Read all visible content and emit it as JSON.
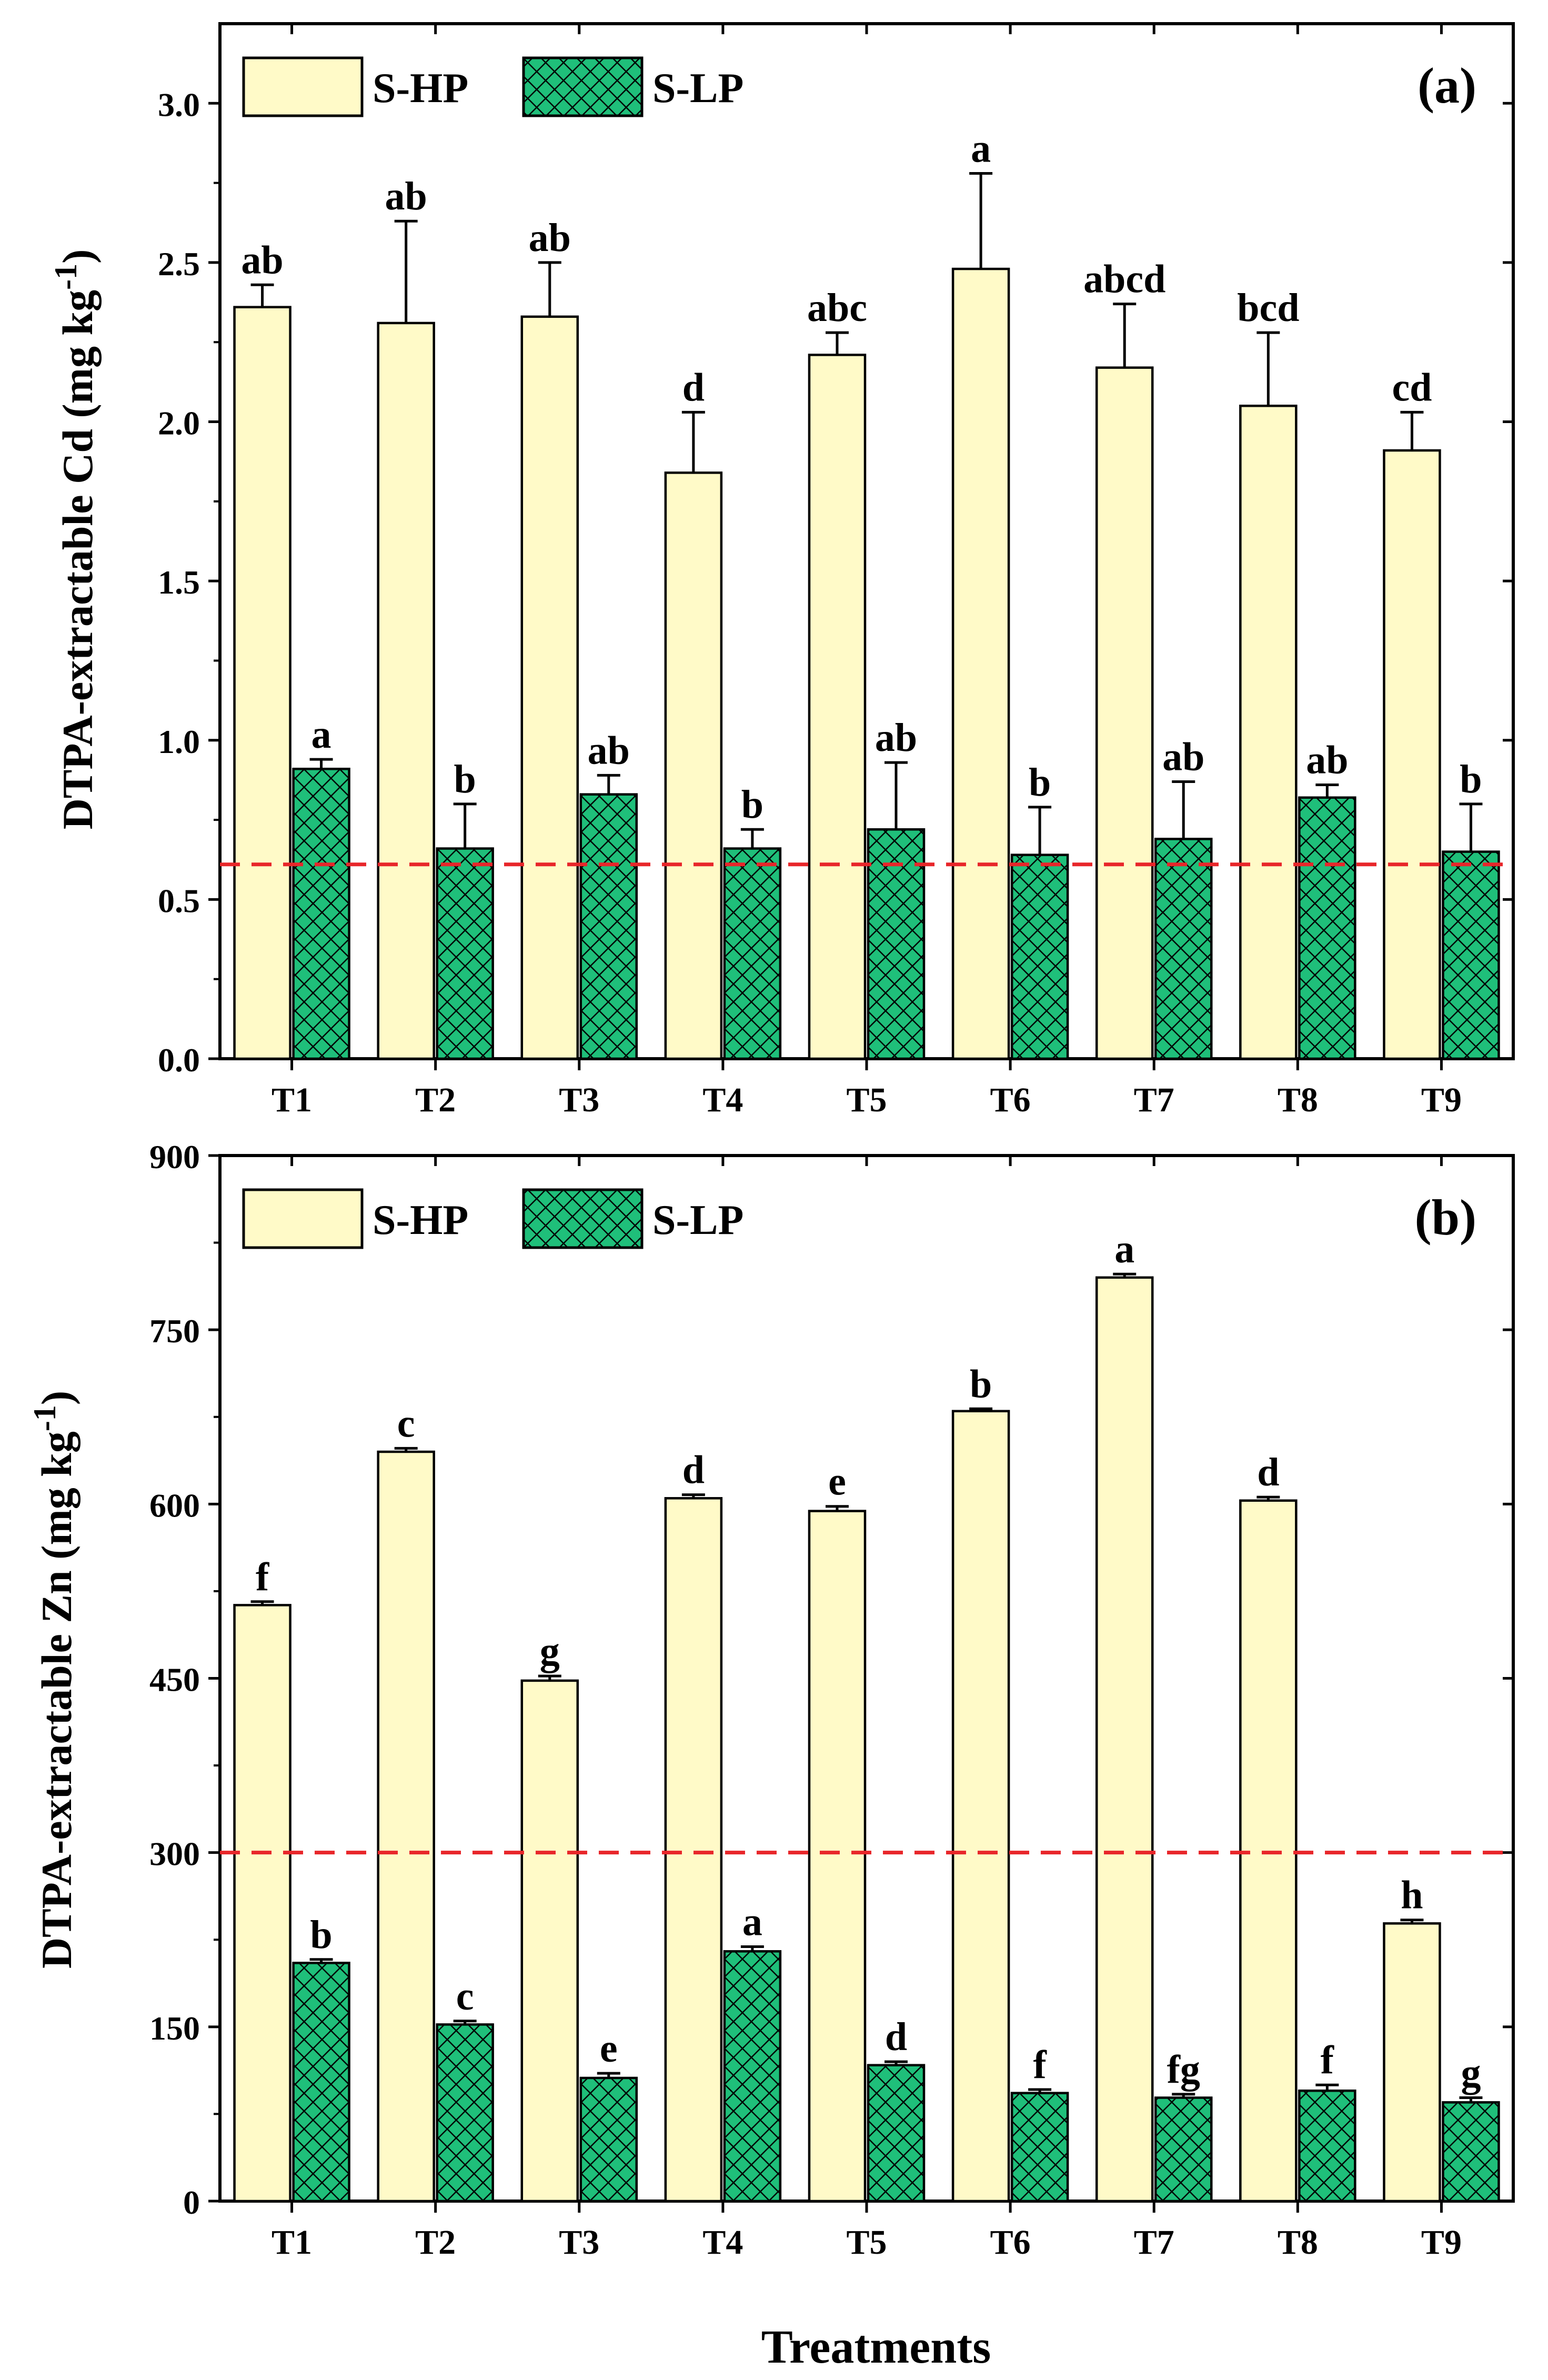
{
  "figure": {
    "xlabel": "Treatments",
    "legend_position": "top-left"
  },
  "chart_data": [
    {
      "type": "bar",
      "panel": "(a)",
      "ylabel_main": "DTPA-extractable Cd (mg kg",
      "ylabel_sup": "-1",
      "ylabel_close": ")",
      "categories": [
        "T1",
        "T2",
        "T3",
        "T4",
        "T5",
        "T6",
        "T7",
        "T8",
        "T9"
      ],
      "ylim": [
        0,
        3.25
      ],
      "yticks": [
        0.0,
        0.5,
        1.0,
        1.5,
        2.0,
        2.5,
        3.0
      ],
      "ytick_labels": [
        "0.0",
        "0.5",
        "1.0",
        "1.5",
        "2.0",
        "2.5",
        "3.0"
      ],
      "reference_line": 0.61,
      "series": [
        {
          "name": "S-HP",
          "color": "#FFFAC8",
          "pattern": "none",
          "values": [
            2.36,
            2.31,
            2.33,
            1.84,
            2.21,
            2.48,
            2.17,
            2.05,
            1.91
          ],
          "errors": [
            0.07,
            0.32,
            0.17,
            0.19,
            0.07,
            0.3,
            0.2,
            0.23,
            0.12
          ],
          "letters": [
            "ab",
            "ab",
            "ab",
            "d",
            "abc",
            "a",
            "abcd",
            "bcd",
            "cd"
          ]
        },
        {
          "name": "S-LP",
          "color": "#1FBF7A",
          "pattern": "crosshatch",
          "values": [
            0.91,
            0.66,
            0.83,
            0.66,
            0.72,
            0.64,
            0.69,
            0.82,
            0.65
          ],
          "errors": [
            0.03,
            0.14,
            0.06,
            0.06,
            0.21,
            0.15,
            0.18,
            0.04,
            0.15
          ],
          "letters": [
            "a",
            "b",
            "ab",
            "b",
            "ab",
            "b",
            "ab",
            "ab",
            "b"
          ]
        }
      ]
    },
    {
      "type": "bar",
      "panel": "(b)",
      "ylabel_main": "DTPA-extractable Zn (mg kg",
      "ylabel_sup": "-1",
      "ylabel_close": ")",
      "categories": [
        "T1",
        "T2",
        "T3",
        "T4",
        "T5",
        "T6",
        "T7",
        "T8",
        "T9"
      ],
      "ylim": [
        0,
        900
      ],
      "yticks": [
        0,
        150,
        300,
        450,
        600,
        750,
        900
      ],
      "ytick_labels": [
        "0",
        "150",
        "300",
        "450",
        "600",
        "750",
        "900"
      ],
      "reference_line": 300,
      "series": [
        {
          "name": "S-HP",
          "color": "#FFFAC8",
          "pattern": "none",
          "values": [
            513,
            645,
            448,
            605,
            594,
            680,
            795,
            603,
            239
          ],
          "errors": [
            3,
            3,
            4,
            3,
            4,
            2,
            3,
            3,
            3
          ],
          "letters": [
            "f",
            "c",
            "g",
            "d",
            "e",
            "b",
            "a",
            "d",
            "h"
          ]
        },
        {
          "name": "S-LP",
          "color": "#1FBF7A",
          "pattern": "crosshatch",
          "values": [
            205,
            152,
            106,
            215,
            117,
            93,
            89,
            95,
            85
          ],
          "errors": [
            3,
            3,
            4,
            4,
            3,
            3,
            3,
            5,
            4
          ],
          "letters": [
            "b",
            "c",
            "e",
            "a",
            "d",
            "f",
            "fg",
            "f",
            "g"
          ]
        }
      ]
    }
  ]
}
